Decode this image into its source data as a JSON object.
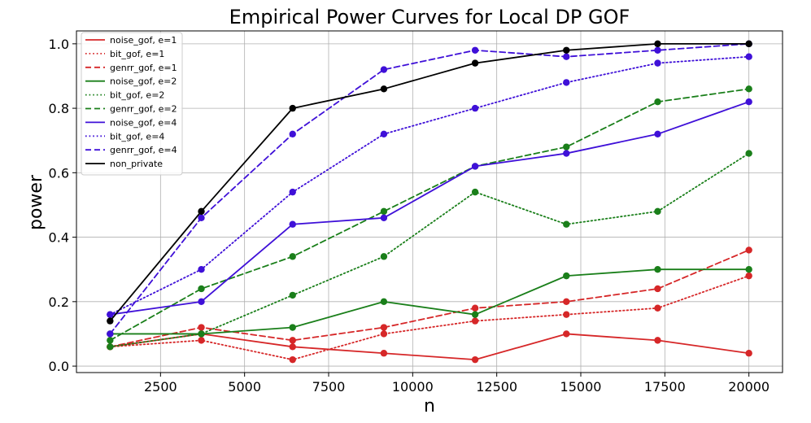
{
  "chart_data": {
    "type": "line",
    "title": "Empirical Power Curves for Local DP GOF",
    "xlabel": "n",
    "ylabel": "power",
    "xlim": [
      0,
      21000
    ],
    "ylim": [
      -0.02,
      1.04
    ],
    "xticks": [
      2500,
      5000,
      7500,
      10000,
      12500,
      15000,
      17500,
      20000
    ],
    "xtick_labels": [
      "2500",
      "5000",
      "7500",
      "10000",
      "12500",
      "15000",
      "17500",
      "20000"
    ],
    "yticks": [
      0.0,
      0.2,
      0.4,
      0.6,
      0.8,
      1.0
    ],
    "ytick_labels": [
      "0.0",
      "0.2",
      "0.4",
      "0.6",
      "0.8",
      "1.0"
    ],
    "grid": true,
    "legend_position": "top-left",
    "x": [
      1000,
      3714,
      6429,
      9143,
      11857,
      14571,
      17286,
      20000
    ],
    "series": [
      {
        "name": "noise_gof, e=1",
        "color": "#d62728",
        "style": "solid",
        "values": [
          0.06,
          0.1,
          0.06,
          0.04,
          0.02,
          0.1,
          0.08,
          0.04
        ]
      },
      {
        "name": "bit_gof, e=1",
        "color": "#d62728",
        "style": "dotted",
        "values": [
          0.06,
          0.08,
          0.02,
          0.1,
          0.14,
          0.16,
          0.18,
          0.28
        ]
      },
      {
        "name": "genrr_gof, e=1",
        "color": "#d62728",
        "style": "dashed",
        "values": [
          0.06,
          0.12,
          0.08,
          0.12,
          0.18,
          0.2,
          0.24,
          0.36
        ]
      },
      {
        "name": "noise_gof, e=2",
        "color": "#1a7f1a",
        "style": "solid",
        "values": [
          0.1,
          0.1,
          0.12,
          0.2,
          0.16,
          0.28,
          0.3,
          0.3
        ]
      },
      {
        "name": "bit_gof, e=2",
        "color": "#1a7f1a",
        "style": "dotted",
        "values": [
          0.06,
          0.1,
          0.22,
          0.34,
          0.54,
          0.44,
          0.48,
          0.66
        ]
      },
      {
        "name": "genrr_gof, e=2",
        "color": "#1a7f1a",
        "style": "dashed",
        "values": [
          0.08,
          0.24,
          0.34,
          0.48,
          0.62,
          0.68,
          0.82,
          0.86
        ]
      },
      {
        "name": "noise_gof, e=4",
        "color": "#3f10d8",
        "style": "solid",
        "values": [
          0.16,
          0.2,
          0.44,
          0.46,
          0.62,
          0.66,
          0.72,
          0.82
        ]
      },
      {
        "name": "bit_gof, e=4",
        "color": "#3f10d8",
        "style": "dotted",
        "values": [
          0.16,
          0.3,
          0.54,
          0.72,
          0.8,
          0.88,
          0.94,
          0.96
        ]
      },
      {
        "name": "genrr_gof, e=4",
        "color": "#3f10d8",
        "style": "dashed",
        "values": [
          0.1,
          0.46,
          0.72,
          0.92,
          0.98,
          0.96,
          0.98,
          1.0
        ]
      },
      {
        "name": "non_private",
        "color": "#000000",
        "style": "solid",
        "values": [
          0.14,
          0.48,
          0.8,
          0.86,
          0.94,
          0.98,
          1.0,
          1.0
        ]
      }
    ]
  }
}
